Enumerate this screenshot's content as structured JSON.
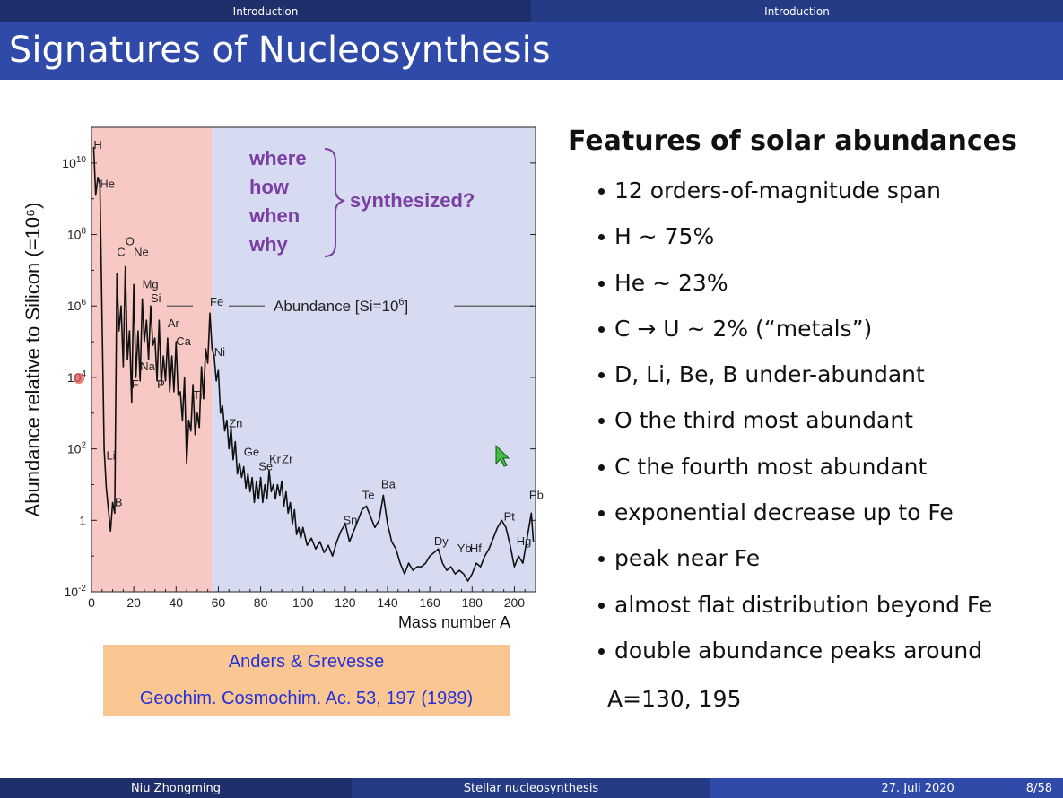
{
  "header": {
    "nav_left": "Introduction",
    "nav_right": "Introduction",
    "title": "Signatures of Nucleosynthesis"
  },
  "chart_data": {
    "type": "line",
    "xlabel": "Mass number A",
    "ylabel": "Abundance relative to Silicon (=10⁶)",
    "xlim": [
      0,
      210
    ],
    "ylim_log10": [
      -2,
      11
    ],
    "log_y": true,
    "x_ticks": [
      "0",
      "20",
      "40",
      "60",
      "80",
      "100",
      "120",
      "140",
      "160",
      "180",
      "200"
    ],
    "y_ticks": [
      {
        "base": "10",
        "exp": "10"
      },
      {
        "base": "10",
        "exp": "8"
      },
      {
        "base": "10",
        "exp": "6"
      },
      {
        "base": "10",
        "exp": "4"
      },
      {
        "base": "10",
        "exp": "2"
      },
      {
        "base": "1",
        "exp": ""
      },
      {
        "base": "10",
        "exp": "-2"
      }
    ],
    "shaded_regions": [
      {
        "from": 0,
        "to": 57,
        "color": "#f7c8c4"
      },
      {
        "from": 57,
        "to": 210,
        "color": "#d6dbf1"
      }
    ],
    "reference_line": {
      "label": "Abundance [Si=10",
      "sup": "6",
      "label_end": "]",
      "y_log10": 6
    },
    "annotation": {
      "words": [
        "where",
        "how",
        "when",
        "why"
      ],
      "text": "synthesized?",
      "color": "#7b3fa3"
    },
    "element_labels": [
      {
        "t": "H",
        "x": 1,
        "y": 10.4
      },
      {
        "t": "He",
        "x": 4,
        "y": 9.3
      },
      {
        "t": "C",
        "x": 12,
        "y": 7.4
      },
      {
        "t": "O",
        "x": 16,
        "y": 7.7
      },
      {
        "t": "Ne",
        "x": 20,
        "y": 7.4
      },
      {
        "t": "Mg",
        "x": 24,
        "y": 6.5
      },
      {
        "t": "Si",
        "x": 28,
        "y": 6.1
      },
      {
        "t": "Fe",
        "x": 56,
        "y": 6.0
      },
      {
        "t": "Ar",
        "x": 36,
        "y": 5.4
      },
      {
        "t": "Ca",
        "x": 40,
        "y": 4.9
      },
      {
        "t": "Ni",
        "x": 58,
        "y": 4.6
      },
      {
        "t": "Na",
        "x": 23,
        "y": 4.2
      },
      {
        "t": "F",
        "x": 19,
        "y": 3.7
      },
      {
        "t": "P",
        "x": 31,
        "y": 3.7
      },
      {
        "t": "Ti",
        "x": 48,
        "y": 3.4
      },
      {
        "t": "Zn",
        "x": 65,
        "y": 2.6
      },
      {
        "t": "Ge",
        "x": 72,
        "y": 1.8
      },
      {
        "t": "Se",
        "x": 79,
        "y": 1.4
      },
      {
        "t": "Kr",
        "x": 84,
        "y": 1.6
      },
      {
        "t": "Zr",
        "x": 90,
        "y": 1.6
      },
      {
        "t": "Li",
        "x": 7,
        "y": 1.7
      },
      {
        "t": "B",
        "x": 11,
        "y": 0.4
      },
      {
        "t": "Te",
        "x": 128,
        "y": 0.6
      },
      {
        "t": "Ba",
        "x": 137,
        "y": 0.9
      },
      {
        "t": "Sn",
        "x": 119,
        "y": -0.1
      },
      {
        "t": "Dy",
        "x": 162,
        "y": -0.7
      },
      {
        "t": "Yb",
        "x": 173,
        "y": -0.9
      },
      {
        "t": "Hf",
        "x": 179,
        "y": -0.9
      },
      {
        "t": "Pt",
        "x": 195,
        "y": 0.0
      },
      {
        "t": "Pb",
        "x": 207,
        "y": 0.6
      },
      {
        "t": "Hg",
        "x": 201,
        "y": -0.7
      }
    ],
    "series": [
      {
        "points": [
          [
            1,
            10.45
          ],
          [
            2,
            9.1
          ],
          [
            3,
            9.6
          ],
          [
            4,
            9.4
          ],
          [
            6,
            2.0
          ],
          [
            7,
            0.9
          ],
          [
            9,
            -0.3
          ],
          [
            10,
            0.5
          ],
          [
            11,
            0.2
          ],
          [
            12,
            6.9
          ],
          [
            13,
            5.3
          ],
          [
            14,
            6.0
          ],
          [
            15,
            4.3
          ],
          [
            16,
            7.1
          ],
          [
            17,
            4.5
          ],
          [
            18,
            5.3
          ],
          [
            19,
            3.3
          ],
          [
            20,
            6.6
          ],
          [
            21,
            4.0
          ],
          [
            22,
            5.3
          ],
          [
            23,
            3.9
          ],
          [
            24,
            6.2
          ],
          [
            25,
            5.0
          ],
          [
            26,
            5.6
          ],
          [
            27,
            4.5
          ],
          [
            28,
            6.0
          ],
          [
            29,
            4.9
          ],
          [
            30,
            5.1
          ],
          [
            31,
            3.9
          ],
          [
            32,
            5.6
          ],
          [
            33,
            3.8
          ],
          [
            34,
            4.6
          ],
          [
            35,
            3.9
          ],
          [
            36,
            5.1
          ],
          [
            37,
            3.6
          ],
          [
            38,
            4.6
          ],
          [
            39,
            3.6
          ],
          [
            40,
            5.0
          ],
          [
            41,
            3.5
          ],
          [
            42,
            3.6
          ],
          [
            43,
            2.8
          ],
          [
            44,
            4.0
          ],
          [
            45,
            1.6
          ],
          [
            46,
            2.8
          ],
          [
            47,
            2.5
          ],
          [
            48,
            3.8
          ],
          [
            49,
            2.4
          ],
          [
            50,
            3.0
          ],
          [
            51,
            2.6
          ],
          [
            52,
            4.3
          ],
          [
            53,
            3.4
          ],
          [
            54,
            4.8
          ],
          [
            55,
            4.4
          ],
          [
            56,
            5.8
          ],
          [
            57,
            4.8
          ],
          [
            58,
            4.6
          ],
          [
            59,
            3.9
          ],
          [
            60,
            4.2
          ],
          [
            61,
            3.0
          ],
          [
            62,
            3.2
          ],
          [
            63,
            2.5
          ],
          [
            64,
            2.8
          ],
          [
            65,
            2.0
          ],
          [
            66,
            2.6
          ],
          [
            67,
            1.7
          ],
          [
            68,
            2.2
          ],
          [
            69,
            1.3
          ],
          [
            70,
            1.6
          ],
          [
            71,
            1.2
          ],
          [
            72,
            1.5
          ],
          [
            73,
            0.9
          ],
          [
            74,
            1.3
          ],
          [
            75,
            0.8
          ],
          [
            76,
            1.2
          ],
          [
            77,
            0.5
          ],
          [
            78,
            1.1
          ],
          [
            79,
            0.6
          ],
          [
            80,
            1.2
          ],
          [
            81,
            0.5
          ],
          [
            82,
            1.0
          ],
          [
            83,
            0.6
          ],
          [
            84,
            1.4
          ],
          [
            85,
            0.8
          ],
          [
            86,
            1.0
          ],
          [
            87,
            0.6
          ],
          [
            88,
            1.0
          ],
          [
            89,
            0.7
          ],
          [
            90,
            1.1
          ],
          [
            91,
            0.4
          ],
          [
            92,
            0.8
          ],
          [
            93,
            0.2
          ],
          [
            94,
            0.5
          ],
          [
            95,
            -0.1
          ],
          [
            96,
            0.3
          ],
          [
            97,
            -0.4
          ],
          [
            98,
            -0.2
          ],
          [
            99,
            -0.5
          ],
          [
            100,
            -0.2
          ],
          [
            102,
            -0.7
          ],
          [
            104,
            -0.5
          ],
          [
            106,
            -0.8
          ],
          [
            108,
            -0.6
          ],
          [
            110,
            -0.9
          ],
          [
            112,
            -0.7
          ],
          [
            114,
            -1.0
          ],
          [
            116,
            -0.6
          ],
          [
            118,
            -0.3
          ],
          [
            120,
            -0.1
          ],
          [
            122,
            -0.6
          ],
          [
            124,
            -0.3
          ],
          [
            126,
            0.0
          ],
          [
            128,
            0.3
          ],
          [
            130,
            0.4
          ],
          [
            132,
            0.1
          ],
          [
            134,
            -0.2
          ],
          [
            136,
            0.0
          ],
          [
            138,
            0.7
          ],
          [
            140,
            -0.1
          ],
          [
            142,
            -0.6
          ],
          [
            144,
            -0.8
          ],
          [
            146,
            -1.2
          ],
          [
            148,
            -1.5
          ],
          [
            150,
            -1.2
          ],
          [
            152,
            -1.4
          ],
          [
            154,
            -1.3
          ],
          [
            156,
            -1.3
          ],
          [
            158,
            -1.2
          ],
          [
            160,
            -1.0
          ],
          [
            162,
            -0.9
          ],
          [
            164,
            -0.8
          ],
          [
            166,
            -1.2
          ],
          [
            168,
            -1.4
          ],
          [
            170,
            -1.3
          ],
          [
            172,
            -1.5
          ],
          [
            174,
            -1.4
          ],
          [
            176,
            -1.5
          ],
          [
            178,
            -1.7
          ],
          [
            180,
            -1.5
          ],
          [
            182,
            -1.2
          ],
          [
            184,
            -1.3
          ],
          [
            186,
            -1.0
          ],
          [
            188,
            -0.8
          ],
          [
            190,
            -0.5
          ],
          [
            192,
            -0.2
          ],
          [
            194,
            0.0
          ],
          [
            196,
            -0.2
          ],
          [
            198,
            -0.7
          ],
          [
            200,
            -1.3
          ],
          [
            202,
            -1.0
          ],
          [
            204,
            -1.2
          ],
          [
            206,
            -0.5
          ],
          [
            208,
            0.2
          ],
          [
            209,
            -0.6
          ]
        ],
        "color": "#111111"
      }
    ]
  },
  "citation": {
    "line1": "Anders & Grevesse",
    "line2": "Geochim. Cosmochim. Ac. 53, 197 (1989)"
  },
  "features": {
    "title": "Features of solar abundances",
    "items": [
      "12 orders-of-magnitude span",
      "H ~ 75%",
      "He ~ 23%",
      "C → U ~ 2% (“metals”)",
      "D, Li, Be, B under-abundant",
      "O the third most abundant",
      "C the fourth most abundant",
      "exponential decrease up to Fe",
      "peak near Fe",
      "almost flat distribution beyond Fe",
      "double abundance peaks around"
    ],
    "continuation": "A=130, 195"
  },
  "footer": {
    "author": "Niu Zhongming",
    "talk": "Stellar nucleosynthesis",
    "date": "27. Juli 2020",
    "page": "8/58"
  }
}
